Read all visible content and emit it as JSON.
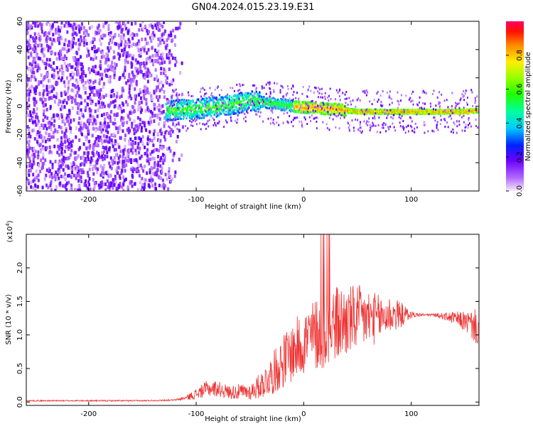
{
  "title": "GN04.2024.015.23.19.E31",
  "chart_data": [
    {
      "type": "heatmap",
      "xlabel": "Height of straight line (km)",
      "ylabel": "Frequency (Hz)",
      "xlim": [
        -258,
        163
      ],
      "ylim": [
        -60,
        60
      ],
      "xticks": [
        -200,
        -100,
        0,
        100
      ],
      "yticks": [
        -60,
        -40,
        -20,
        0,
        20,
        40,
        60
      ],
      "grid": false,
      "colorbar": {
        "label": "Normalized spectral amplitude",
        "range": [
          0,
          1
        ],
        "ticks": [
          0.0,
          0.2,
          0.4,
          0.6,
          0.8
        ],
        "colormap": "rainbow"
      },
      "ridge": {
        "x": [
          -125,
          -100,
          -75,
          -60,
          -50,
          -40,
          -30,
          -20,
          -10,
          0,
          10,
          20,
          30,
          40,
          50,
          75,
          100,
          125,
          150,
          163
        ],
        "y": [
          -3,
          -2,
          0,
          2,
          4,
          3,
          2,
          1,
          0,
          -1,
          -1,
          -2,
          -2,
          -3,
          -4,
          -4,
          -4,
          -4,
          -4,
          -3
        ]
      }
    },
    {
      "type": "line",
      "xlabel": "Height of straight line (km)",
      "ylabel": "SNR (10 * v/v)",
      "yscale_label": "(x10",
      "yscale_exponent": "4",
      "xlim": [
        -258,
        163
      ],
      "ylim": [
        -0.05,
        2.5
      ],
      "xticks": [
        -200,
        -100,
        0,
        100
      ],
      "yticks": [
        0.0,
        0.5,
        1.0,
        1.5,
        2.0
      ],
      "grid": false,
      "series": [
        {
          "color": "#ee3333",
          "x": [
            -258,
            -200,
            -150,
            -120,
            -110,
            -100,
            -90,
            -80,
            -70,
            -60,
            -50,
            -40,
            -30,
            -20,
            -10,
            0,
            10,
            20,
            30,
            40,
            50,
            60,
            70,
            80,
            90,
            100,
            110,
            120,
            130,
            140,
            150,
            163
          ],
          "y": [
            0.02,
            0.02,
            0.02,
            0.03,
            0.06,
            0.12,
            0.2,
            0.2,
            0.15,
            0.15,
            0.15,
            0.25,
            0.4,
            0.6,
            0.75,
            0.9,
            1.0,
            1.1,
            1.15,
            1.2,
            1.25,
            1.25,
            1.25,
            1.3,
            1.3,
            1.3,
            1.3,
            1.3,
            1.28,
            1.25,
            1.2,
            1.1
          ],
          "spread": [
            0.01,
            0.01,
            0.01,
            0.01,
            0.03,
            0.08,
            0.12,
            0.12,
            0.1,
            0.12,
            0.12,
            0.2,
            0.3,
            0.4,
            0.45,
            0.5,
            0.55,
            0.6,
            0.6,
            0.55,
            0.5,
            0.45,
            0.35,
            0.3,
            0.2,
            0.05,
            0.02,
            0.02,
            0.05,
            0.1,
            0.15,
            0.3
          ]
        }
      ]
    }
  ]
}
